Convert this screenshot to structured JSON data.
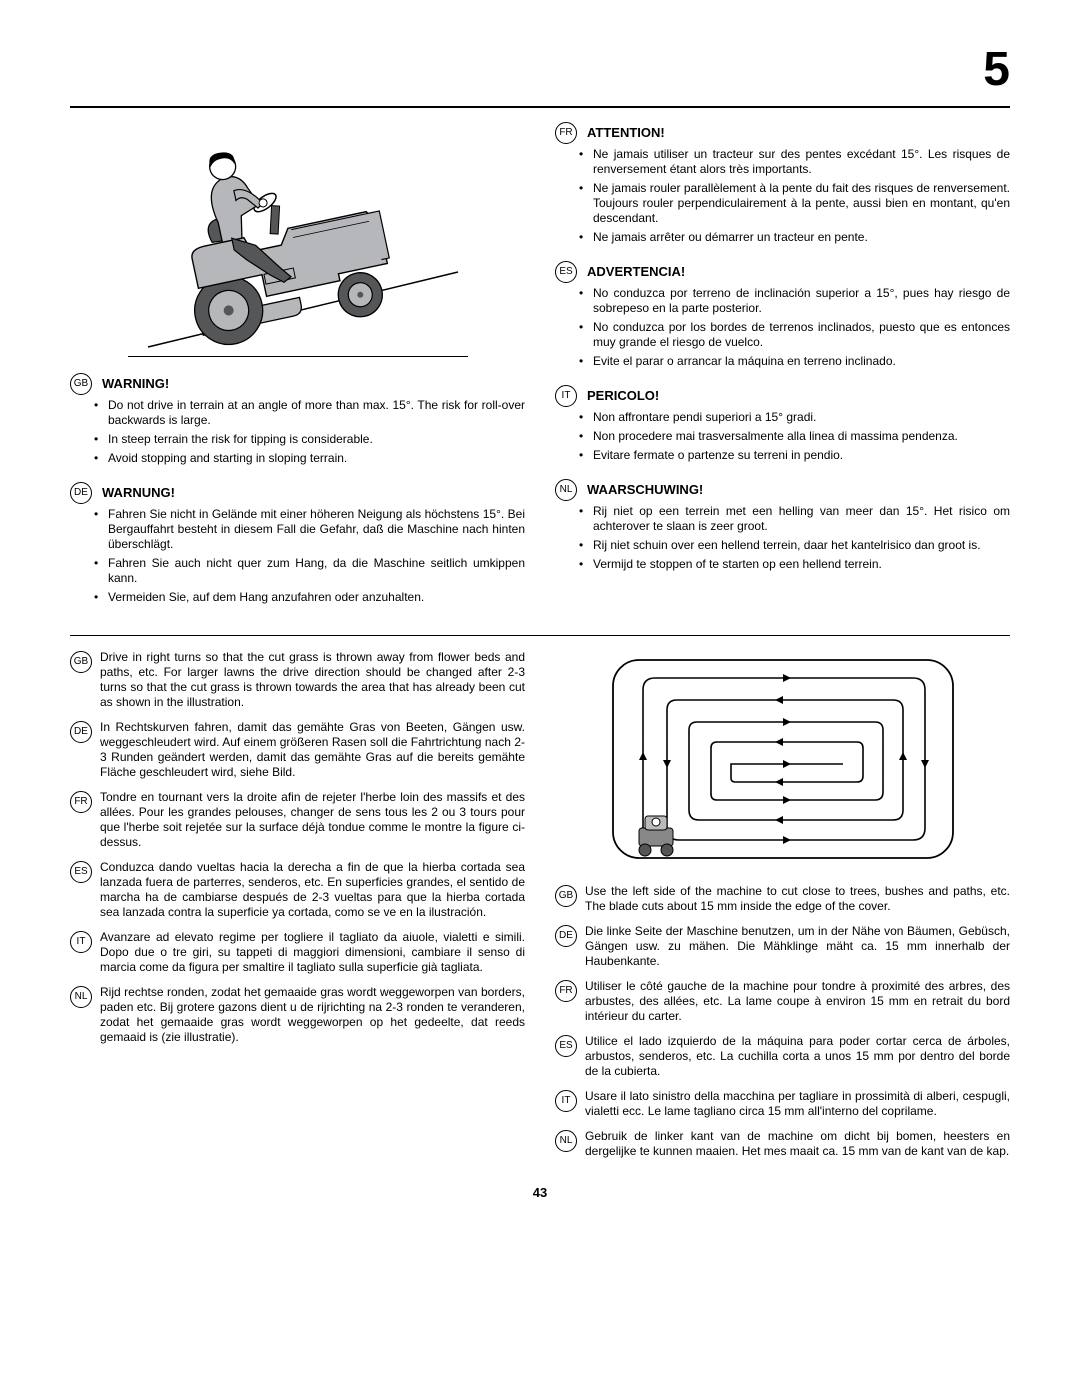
{
  "pageNumber": "5",
  "bottomPage": "43",
  "warnings": {
    "left": [
      {
        "lang": "GB",
        "title": "WARNING!",
        "items": [
          "Do not drive in terrain at an angle of more than max. 15°. The risk for roll-over backwards is large.",
          "In steep terrain the risk for tipping is considerable.",
          "Avoid stopping and starting in sloping terrain."
        ]
      },
      {
        "lang": "DE",
        "title": "WARNUNG!",
        "items": [
          "Fahren Sie nicht in Gelände mit einer höheren Neigung als höchstens 15°. Bei Bergauffahrt besteht in diesem Fall die Gefahr, daß die Maschine nach hinten überschlägt.",
          "Fahren Sie auch nicht quer zum Hang, da die Maschine seitlich umkippen kann.",
          "Vermeiden Sie, auf dem Hang anzufahren oder anzuhalten."
        ]
      }
    ],
    "right": [
      {
        "lang": "FR",
        "title": "ATTENTION!",
        "items": [
          "Ne jamais utiliser un tracteur sur des pentes excédant 15°. Les risques de renversement étant alors très importants.",
          "Ne jamais rouler parallèlement à la pente du fait des risques de renversement. Toujours rouler perpendiculairement à la pente, aussi bien en montant, qu'en descendant.",
          "Ne jamais arrêter ou démarrer un tracteur en pente."
        ]
      },
      {
        "lang": "ES",
        "title": "ADVERTENCIA!",
        "items": [
          "No conduzca por terreno de inclinación superior a 15°, pues hay riesgo de sobrepeso en la parte posterior.",
          "No conduzca por los bordes de terrenos inclinados, puesto que es entonces muy grande el riesgo de vuelco.",
          "Evite el parar o arrancar la máquina en terreno inclinado."
        ]
      },
      {
        "lang": "IT",
        "title": "PERICOLO!",
        "items": [
          "Non affrontare pendi superiori a 15° gradi.",
          "Non procedere mai trasversalmente alla linea di massima pendenza.",
          "Evitare fermate o partenze su terreni in pendio."
        ]
      },
      {
        "lang": "NL",
        "title": "WAARSCHUWING!",
        "items": [
          "Rij niet op een terrein met een helling van meer dan 15°. Het risico om achterover te slaan is zeer groot.",
          "Rij niet schuin over een hellend terrein, daar het kantel­risico dan groot is.",
          "Vermijd te stoppen of te starten op een hellend terrein."
        ]
      }
    ]
  },
  "driveTurns": [
    {
      "lang": "GB",
      "text": "Drive in right turns so that the cut grass is thrown away from flower beds and paths, etc. For larger lawns the drive direction should be changed after 2-3 turns so that the cut grass is thrown towards the area that has already been cut as shown in the illustration."
    },
    {
      "lang": "DE",
      "text": "In Rechtskurven fahren, damit das gemähte Gras von Beeten, Gängen usw. weggeschleudert wird. Auf einem größeren Rasen soll die Fahrtrichtung nach 2-3 Runden geändert werden, damit das gemähte Gras auf die bereits gemähte Fläche geschleudert wird, siehe Bild."
    },
    {
      "lang": "FR",
      "text": "Tondre en tournant vers la droite  afin de rejeter l'herbe loin des massifs et des allées. Pour les grandes pelouses, changer de sens tous les 2 ou 3 tours pour que l'herbe soit rejetée sur la surface déjà tondue comme le montre la figure ci-dessus."
    },
    {
      "lang": "ES",
      "text": "Conduzca dando vueltas hacia la derecha a fin de que la hierba cortada sea lanzada fuera de parterres, senderos, etc. En superficies grandes, el sentido de marcha ha de cambiarse después de 2-3 vueltas para que la hierba cortada sea lanzada contra la superficie ya cortada, como se ve en la ilustración."
    },
    {
      "lang": "IT",
      "text": "Avanzare ad elevato regime per togliere il tagliato da aiuole, vialetti e simili. Dopo due o tre giri, su tappeti di maggiori dimensioni, cambiare il senso di marcia come da figura per smaltire il tagliato sulla superficie già tagliata."
    },
    {
      "lang": "NL",
      "text": "Rijd rechtse ronden, zodat het gemaaide gras wordt wegge­worpen van borders, paden etc. Bij grotere gazons dient u de rijrichting na 2-3 ronden te veranderen, zodat het gemaaide gras wordt weggeworpen op het gedeelte, dat reeds gemaaid is (zie illustratie)."
    }
  ],
  "leftSide": [
    {
      "lang": "GB",
      "text": "Use the left side of the machine to cut close to trees, bushes and paths, etc. The blade cuts about 15 mm inside the edge of the cover."
    },
    {
      "lang": "DE",
      "text": "Die linke Seite der Maschine benutzen, um in der Nähe von Bäumen, Gebüsch, Gängen usw. zu mähen. Die Mähklinge mäht ca. 15 mm innerhalb der Haubenkante."
    },
    {
      "lang": "FR",
      "text": "Utiliser le côté gauche de la machine pour tondre à proximité des arbres, des arbustes, des allées, etc. La lame coupe à environ 15 mm en retrait du bord intérieur du carter."
    },
    {
      "lang": "ES",
      "text": "Utilice el lado izquierdo de la máquina para poder cortar cerca de árboles, arbustos, senderos, etc. La cuchilla corta a unos 15 mm por dentro del borde de la cubierta."
    },
    {
      "lang": "IT",
      "text": "Usare il lato sinistro della macchina per tagliare in prossimità di alberi, cespugli, vialetti ecc. Le lame tagliano circa 15 mm all'interno del coprilame."
    },
    {
      "lang": "NL",
      "text": "Gebruik de linker kant van de machine om dicht bij bomen, heesters en dergelijke te kunnen maaien. Het mes maait ca. 15 mm van de kant van de kap."
    }
  ],
  "illustration": {
    "alt": "Person on lawn tractor on a slope",
    "colors": {
      "body": "#b5b7ba",
      "dark": "#555658",
      "line": "#000000",
      "skin": "#ffffff",
      "hair": "#000000"
    }
  },
  "mowPattern": {
    "alt": "Spiral mowing pattern diagram",
    "stroke": "#000000"
  }
}
